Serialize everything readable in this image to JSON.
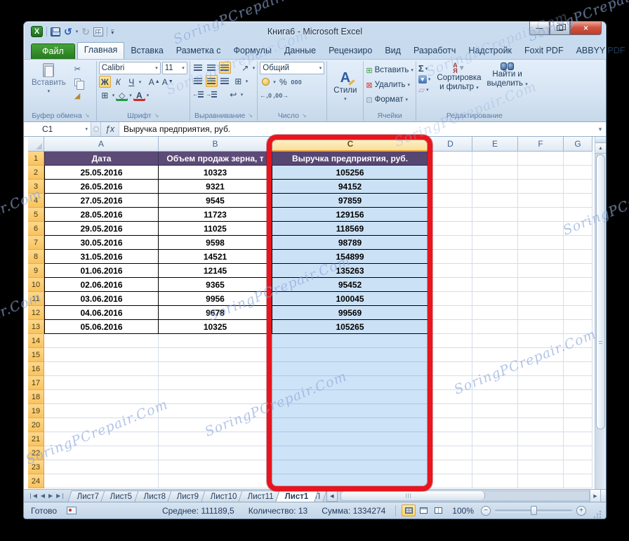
{
  "window": {
    "title": "Книга6 - Microsoft Excel"
  },
  "ribbon": {
    "file_tab": "Файл",
    "active_tab": "Главная",
    "tabs": [
      "Главная",
      "Вставка",
      "Разметка с",
      "Формулы",
      "Данные",
      "Рецензиро",
      "Вид",
      "Разработч",
      "Надстройк",
      "Foxit PDF",
      "ABBYY PDF"
    ],
    "groups": {
      "clipboard": {
        "label": "Буфер обмена",
        "paste": "Вставить"
      },
      "font": {
        "label": "Шрифт",
        "font_name": "Calibri",
        "font_size": "11",
        "bold": "Ж",
        "italic": "К",
        "underline": "Ч",
        "grow": "А",
        "shrink": "А",
        "color": "А"
      },
      "alignment": {
        "label": "Выравнивание"
      },
      "number": {
        "label": "Число",
        "format": "Общий",
        "percent": "%",
        "thousands": "000"
      },
      "styles": {
        "label": "Стили",
        "icon_letter": "А"
      },
      "cells": {
        "label": "Ячейки",
        "insert": "Вставить",
        "delete": "Удалить",
        "format": "Формат"
      },
      "editing": {
        "label": "Редактирование",
        "sort_line1": "Сортировка",
        "sort_line2": "и фильтр",
        "find_line1": "Найти и",
        "find_line2": "выделить",
        "sort_icon_top": "А",
        "sort_icon_bottom": "Я"
      }
    }
  },
  "formula_bar": {
    "cell_ref": "C1",
    "fx": "ƒx",
    "formula": "Выручка предприятия, руб."
  },
  "grid": {
    "columns": [
      "A",
      "B",
      "C",
      "D",
      "E",
      "F",
      "G"
    ],
    "selected_column": "C",
    "header_row": [
      "Дата",
      "Объем продаж зерна, т",
      "Выручка предприятия, руб."
    ],
    "rows": [
      {
        "n": 2,
        "date": "25.05.2016",
        "volume": "10323",
        "revenue": "105256"
      },
      {
        "n": 3,
        "date": "26.05.2016",
        "volume": "9321",
        "revenue": "94152"
      },
      {
        "n": 4,
        "date": "27.05.2016",
        "volume": "9545",
        "revenue": "97859"
      },
      {
        "n": 5,
        "date": "28.05.2016",
        "volume": "11723",
        "revenue": "129156"
      },
      {
        "n": 6,
        "date": "29.05.2016",
        "volume": "11025",
        "revenue": "118569"
      },
      {
        "n": 7,
        "date": "30.05.2016",
        "volume": "9598",
        "revenue": "98789"
      },
      {
        "n": 8,
        "date": "31.05.2016",
        "volume": "14521",
        "revenue": "154899"
      },
      {
        "n": 9,
        "date": "01.06.2016",
        "volume": "12145",
        "revenue": "135263"
      },
      {
        "n": 10,
        "date": "02.06.2016",
        "volume": "9365",
        "revenue": "95452"
      },
      {
        "n": 11,
        "date": "03.06.2016",
        "volume": "9956",
        "revenue": "100045"
      },
      {
        "n": 12,
        "date": "04.06.2016",
        "volume": "9678",
        "revenue": "99569"
      },
      {
        "n": 13,
        "date": "05.06.2016",
        "volume": "10325",
        "revenue": "105265"
      }
    ],
    "visible_row_count": 24
  },
  "sheet_tabs": {
    "tabs": [
      "Лист7",
      "Лист5",
      "Лист8",
      "Лист9",
      "Лист10",
      "Лист11",
      "Лист1",
      "Л"
    ],
    "active": "Лист1"
  },
  "status_bar": {
    "ready": "Готово",
    "average": "Среднее: 111189,5",
    "count": "Количество: 13",
    "sum": "Сумма: 1334274",
    "zoom": "100%"
  },
  "watermark": {
    "text": "SoringPCrepair.Com"
  },
  "colors": {
    "annotation_red": "#e9141d",
    "selection_blue": "#cbe1f6",
    "table_header_purple": "#5c4a77",
    "row_header_orange": "#fbcd75",
    "selected_col_header_amber": "#fadf9c",
    "file_tab_green": "#2f8a2f"
  }
}
